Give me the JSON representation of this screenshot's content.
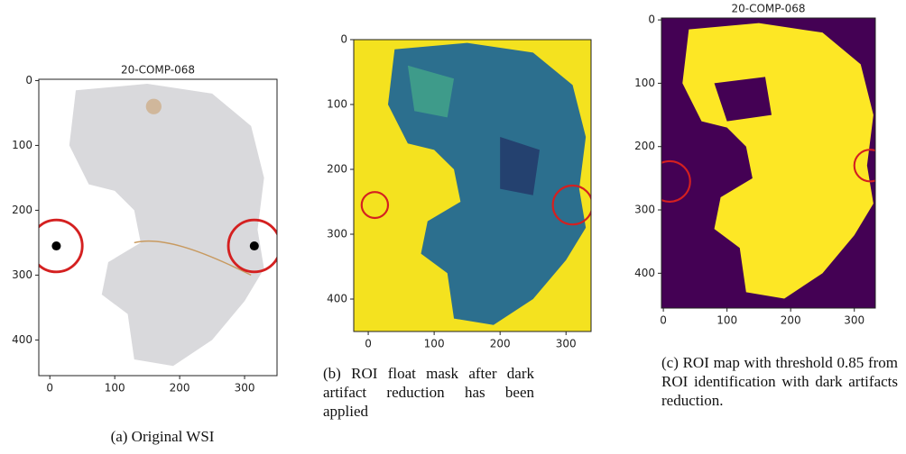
{
  "panels": [
    {
      "title": "20-COMP-068",
      "xlim": [
        -17,
        350
      ],
      "ylim": [
        455,
        -2
      ],
      "xticks": [
        0,
        100,
        200,
        300
      ],
      "yticks": [
        0,
        100,
        200,
        300,
        400
      ],
      "caption": "(a) Original WSI"
    },
    {
      "xlim": [
        -22,
        338
      ],
      "ylim": [
        450,
        0
      ],
      "xticks": [
        0,
        100,
        200,
        300
      ],
      "yticks": [
        0,
        100,
        200,
        300,
        400
      ],
      "caption": "(b) ROI float mask after dark artifact reduction has been applied"
    },
    {
      "title": "20-COMP-068",
      "xlim": [
        -3,
        333
      ],
      "ylim": [
        455,
        -3
      ],
      "xticks": [
        0,
        100,
        200,
        300
      ],
      "yticks": [
        0,
        100,
        200,
        300,
        400
      ],
      "caption": "(c) ROI map with threshold 0.85 from ROI identification with dark artifacts reduction."
    }
  ]
}
